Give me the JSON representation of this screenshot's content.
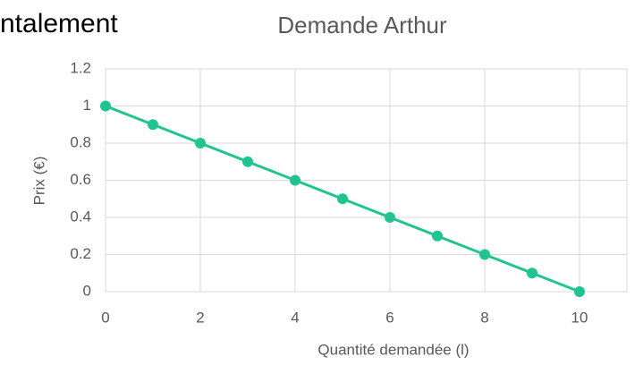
{
  "chart_data": {
    "type": "line",
    "title": "Demande Arthur",
    "annotation": "ntalement",
    "xlabel": "Quantité demandée (l)",
    "ylabel": "Prix (€)",
    "x": [
      0,
      1,
      2,
      3,
      4,
      5,
      6,
      7,
      8,
      9,
      10
    ],
    "series": [
      {
        "name": "Demande Arthur",
        "color": "#21c491",
        "values": [
          1,
          0.9,
          0.8,
          0.7,
          0.6,
          0.5,
          0.4,
          0.3,
          0.2,
          0.1,
          0
        ]
      }
    ],
    "xlim": [
      0,
      11
    ],
    "xticks": [
      0,
      2,
      4,
      6,
      8,
      10
    ],
    "ylim": [
      0,
      1.2
    ],
    "yticks": [
      0,
      0.2,
      0.4,
      0.6,
      0.8,
      1,
      1.2
    ],
    "grid": true
  }
}
